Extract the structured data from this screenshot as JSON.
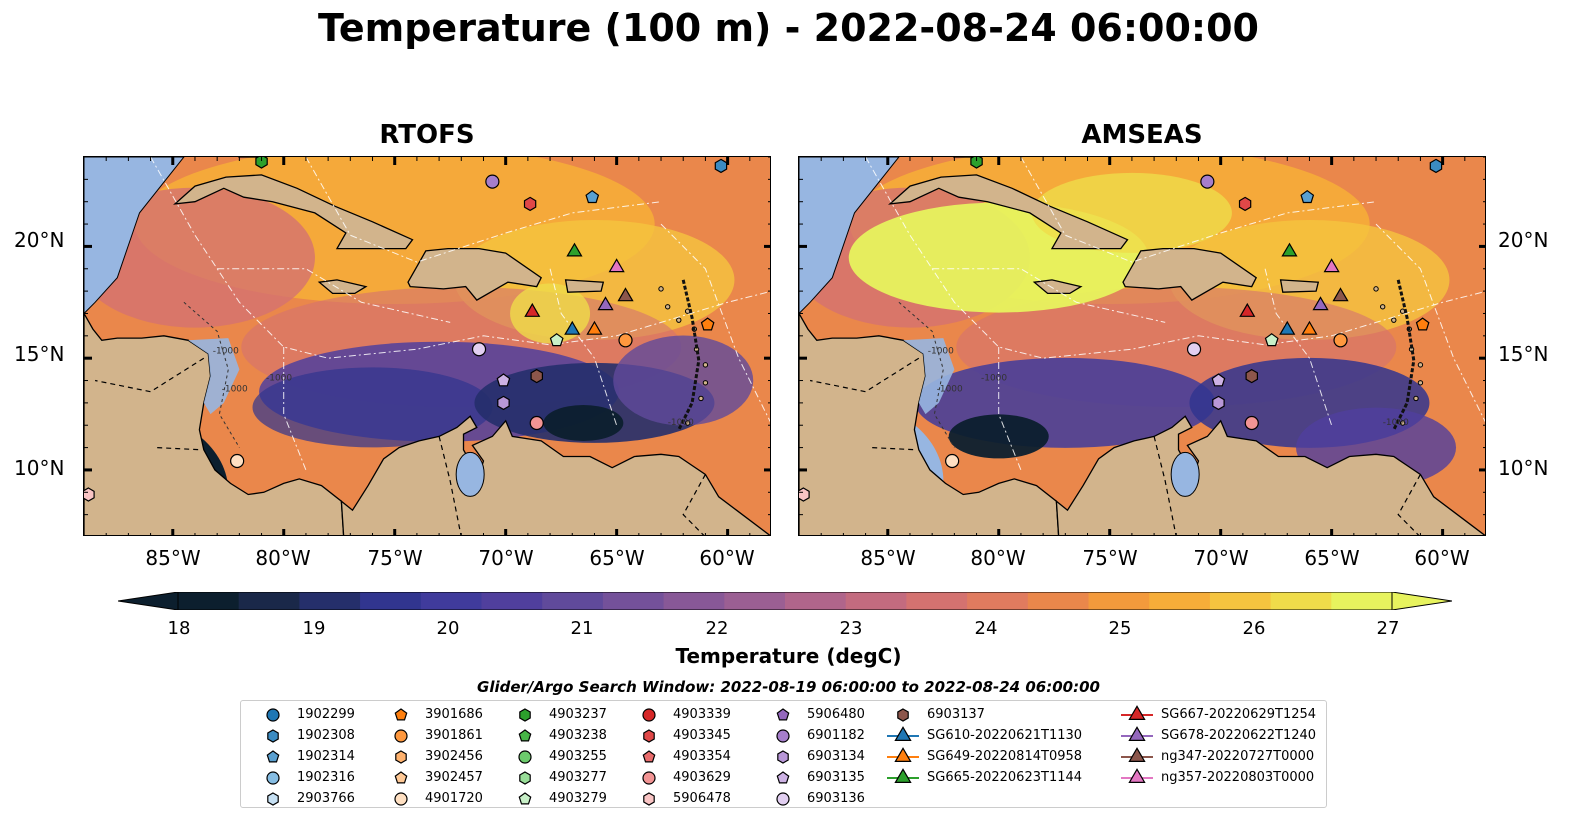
{
  "title": "Temperature (100 m) - 2022-08-24 06:00:00",
  "panels": [
    {
      "title": "RTOFS"
    },
    {
      "title": "AMSEAS"
    }
  ],
  "lat_labels": [
    "20°N",
    "15°N",
    "10°N"
  ],
  "lon_labels": [
    "85°W",
    "80°W",
    "75°W",
    "70°W",
    "65°W",
    "60°W"
  ],
  "map_extent": {
    "lon": [
      -89,
      -58
    ],
    "lat": [
      7,
      24
    ]
  },
  "contour_labels": [
    "-1000",
    "-1000",
    "-1000",
    "-1000"
  ],
  "colorbar": {
    "label": "Temperature (degC)",
    "ticks": [
      "18",
      "19",
      "20",
      "21",
      "22",
      "23",
      "24",
      "25",
      "26",
      "27"
    ],
    "range": [
      18,
      27
    ],
    "extend": "both",
    "colormap": "thermal",
    "colors": [
      "#0c1f2e",
      "#1a2849",
      "#252f6b",
      "#31358f",
      "#403b9c",
      "#503f9d",
      "#604a9b",
      "#74519a",
      "#885897",
      "#9b5f93",
      "#b0658b",
      "#c36b7f",
      "#d47270",
      "#e07b5f",
      "#ea874b",
      "#f39a3c",
      "#f6ad39",
      "#f5c43f",
      "#efdc4a",
      "#e7f35e"
    ]
  },
  "legend": {
    "title": "Glider/Argo Search Window: 2022-08-19 06:00:00 to 2022-08-24 06:00:00",
    "items": [
      {
        "label": "1902299",
        "marker": "circle",
        "color": "#1f77b4"
      },
      {
        "label": "1902308",
        "marker": "hexagon",
        "color": "#3b8bc2"
      },
      {
        "label": "1902314",
        "marker": "pentagon",
        "color": "#5aa0d0"
      },
      {
        "label": "1902316",
        "marker": "circle",
        "color": "#86bde3"
      },
      {
        "label": "2903766",
        "marker": "hexagon",
        "color": "#c6e0f3"
      },
      {
        "label": "3901686",
        "marker": "pentagon",
        "color": "#ff7f0e"
      },
      {
        "label": "3901861",
        "marker": "circle",
        "color": "#ff983e"
      },
      {
        "label": "3902456",
        "marker": "hexagon",
        "color": "#ffb26e"
      },
      {
        "label": "3902457",
        "marker": "pentagon",
        "color": "#ffc996"
      },
      {
        "label": "4901720",
        "marker": "circle",
        "color": "#ffe0c2"
      },
      {
        "label": "4903237",
        "marker": "hexagon",
        "color": "#2ca02c"
      },
      {
        "label": "4903238",
        "marker": "pentagon",
        "color": "#47b547"
      },
      {
        "label": "4903255",
        "marker": "circle",
        "color": "#6ccb6c"
      },
      {
        "label": "4903277",
        "marker": "hexagon",
        "color": "#98dd98"
      },
      {
        "label": "4903279",
        "marker": "pentagon",
        "color": "#c8f0c8"
      },
      {
        "label": "4903339",
        "marker": "circle",
        "color": "#d62728"
      },
      {
        "label": "4903345",
        "marker": "hexagon",
        "color": "#e04848"
      },
      {
        "label": "4903354",
        "marker": "pentagon",
        "color": "#e96c6c"
      },
      {
        "label": "4903629",
        "marker": "circle",
        "color": "#f29494"
      },
      {
        "label": "5906478",
        "marker": "hexagon",
        "color": "#f9c4c4"
      },
      {
        "label": "5906480",
        "marker": "pentagon",
        "color": "#9467bd"
      },
      {
        "label": "6901182",
        "marker": "circle",
        "color": "#a67ecb"
      },
      {
        "label": "6903134",
        "marker": "hexagon",
        "color": "#b897d7"
      },
      {
        "label": "6903135",
        "marker": "pentagon",
        "color": "#cdb2e4"
      },
      {
        "label": "6903136",
        "marker": "circle",
        "color": "#e2cff1"
      },
      {
        "label": "6903137",
        "marker": "hexagon",
        "color": "#8c564b"
      },
      {
        "label": "SG610-20220621T1130",
        "marker": "triangle",
        "color": "#1f77b4"
      },
      {
        "label": "SG649-20220814T0958",
        "marker": "triangle",
        "color": "#ff7f0e"
      },
      {
        "label": "SG665-20220623T1144",
        "marker": "triangle",
        "color": "#2ca02c"
      },
      {
        "label": "SG667-20220629T1254",
        "marker": "triangle",
        "color": "#d62728"
      },
      {
        "label": "SG678-20220622T1240",
        "marker": "triangle",
        "color": "#9467bd"
      },
      {
        "label": "ng347-20220727T0000",
        "marker": "triangle",
        "color": "#8c564b"
      },
      {
        "label": "ng357-20220803T0000",
        "marker": "triangle",
        "color": "#e377c2"
      }
    ]
  },
  "observations": [
    {
      "label": "1902308",
      "lon": -60.3,
      "lat": 23.6
    },
    {
      "label": "1902314",
      "lon": -66.1,
      "lat": 22.2
    },
    {
      "label": "3901686",
      "lon": -60.9,
      "lat": 16.5
    },
    {
      "label": "3901861",
      "lon": -64.6,
      "lat": 15.8
    },
    {
      "label": "4901720",
      "lon": -82.1,
      "lat": 10.4
    },
    {
      "label": "4903237",
      "lon": -81.0,
      "lat": 23.8
    },
    {
      "label": "4903279",
      "lon": -67.7,
      "lat": 15.8
    },
    {
      "label": "4903345",
      "lon": -68.9,
      "lat": 21.9
    },
    {
      "label": "4903629",
      "lon": -68.6,
      "lat": 12.1
    },
    {
      "label": "5906478",
      "lon": -88.8,
      "lat": 8.9
    },
    {
      "label": "6901182",
      "lon": -70.6,
      "lat": 22.9
    },
    {
      "label": "6903134",
      "lon": -70.1,
      "lat": 13.0
    },
    {
      "label": "6903135",
      "lon": -70.1,
      "lat": 14.0
    },
    {
      "label": "6903136",
      "lon": -71.2,
      "lat": 15.4
    },
    {
      "label": "6903137",
      "lon": -68.6,
      "lat": 14.2
    },
    {
      "label": "SG610-20220621T1130",
      "lon": -67.0,
      "lat": 16.3
    },
    {
      "label": "SG649-20220814T0958",
      "lon": -66.0,
      "lat": 16.3
    },
    {
      "label": "SG665-20220623T1144",
      "lon": -66.9,
      "lat": 19.8
    },
    {
      "label": "SG667-20220629T1254",
      "lon": -68.8,
      "lat": 17.1
    },
    {
      "label": "SG678-20220622T1240",
      "lon": -65.5,
      "lat": 17.4
    },
    {
      "label": "ng347-20220727T0000",
      "lon": -64.6,
      "lat": 17.8
    },
    {
      "label": "ng357-20220803T0000",
      "lon": -65.0,
      "lat": 19.1
    }
  ]
}
